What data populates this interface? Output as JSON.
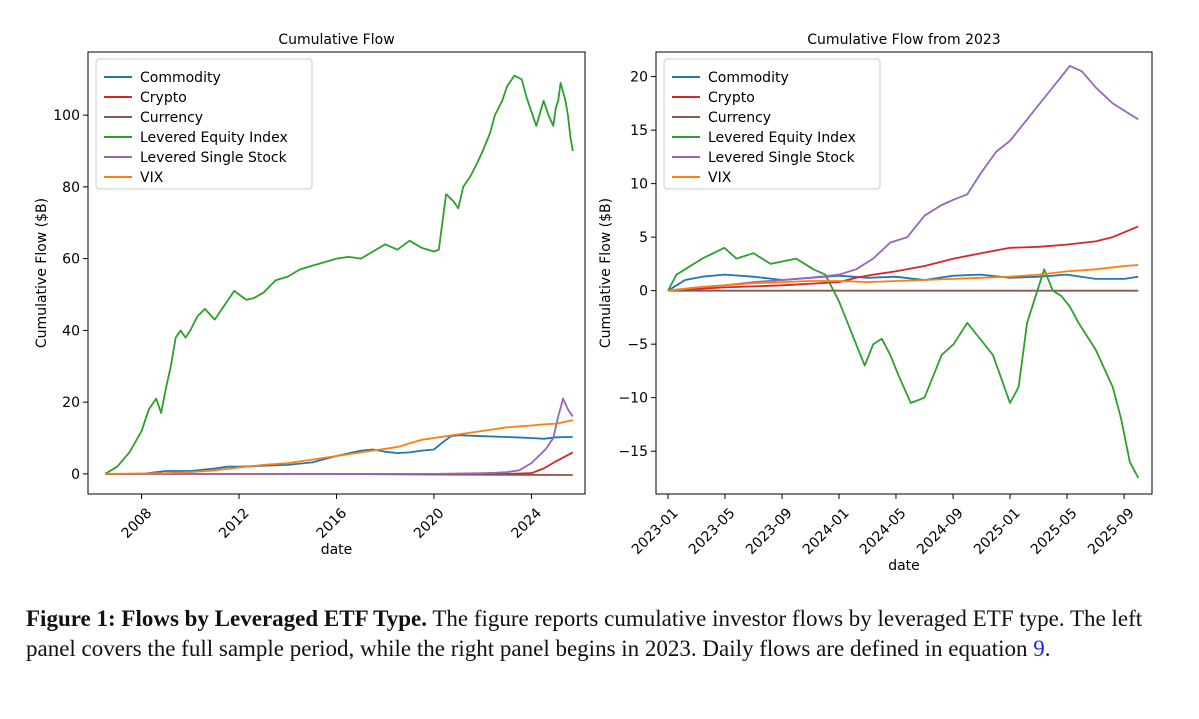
{
  "caption": {
    "title": "Figure 1: Flows by Leveraged ETF Type.",
    "text": " The figure reports cumulative investor flows by leveraged ETF type. The left panel covers the full sample period, while the right panel begins in 2023. Daily flows are defined in equation ",
    "ref": "9",
    "end": "."
  },
  "colors": {
    "Commodity": "#1f77b4",
    "Crypto": "#d62728",
    "Currency": "#8c564b",
    "Levered Equity Index": "#2ca02c",
    "Levered Single Stock": "#9467bd",
    "VIX": "#ff7f0e"
  },
  "chart_data": [
    {
      "type": "line",
      "title": "Cumulative Flow",
      "xlabel": "date",
      "ylabel": "Cumulative Flow ($B)",
      "xlim": [
        2005.8,
        2026.2
      ],
      "ylim": [
        -5.6,
        117.6
      ],
      "xticks": [
        2008,
        2012,
        2016,
        2020,
        2024
      ],
      "xtick_labels": [
        "2008",
        "2012",
        "2016",
        "2020",
        "2024"
      ],
      "yticks": [
        0,
        20,
        40,
        60,
        80,
        100
      ],
      "legend": "top-left",
      "grid": false,
      "series": [
        {
          "name": "Commodity",
          "x": [
            2006.5,
            2008.0,
            2009.0,
            2010.0,
            2011.0,
            2011.5,
            2012.0,
            2013.0,
            2014.0,
            2015.0,
            2016.0,
            2017.0,
            2017.5,
            2018.0,
            2018.5,
            2019.0,
            2019.5,
            2020.0,
            2020.3,
            2020.7,
            2021.0,
            2022.0,
            2023.0,
            2024.0,
            2024.5,
            2025.0,
            2025.7
          ],
          "y": [
            0,
            0,
            0.8,
            0.8,
            1.5,
            2.0,
            2.0,
            2.3,
            2.5,
            3.2,
            5.0,
            6.5,
            6.8,
            6.2,
            5.8,
            6.0,
            6.5,
            6.8,
            8.5,
            10.5,
            10.8,
            10.5,
            10.3,
            10.0,
            9.8,
            10.2,
            10.3
          ]
        },
        {
          "name": "Crypto",
          "x": [
            2006.5,
            2021.0,
            2022.0,
            2023.0,
            2024.0,
            2024.5,
            2025.0,
            2025.7
          ],
          "y": [
            0,
            0,
            0,
            0,
            0.2,
            1.5,
            3.5,
            6.0
          ]
        },
        {
          "name": "Currency",
          "x": [
            2006.5,
            2012.0,
            2016.0,
            2020.0,
            2025.7
          ],
          "y": [
            0,
            0,
            0,
            -0.2,
            -0.3
          ]
        },
        {
          "name": "Levered Equity Index",
          "x": [
            2006.5,
            2007.0,
            2007.5,
            2008.0,
            2008.3,
            2008.6,
            2008.8,
            2009.0,
            2009.2,
            2009.4,
            2009.6,
            2009.8,
            2010.0,
            2010.3,
            2010.6,
            2011.0,
            2011.3,
            2011.6,
            2011.8,
            2012.0,
            2012.3,
            2012.6,
            2013.0,
            2013.5,
            2014.0,
            2014.5,
            2015.0,
            2015.5,
            2016.0,
            2016.5,
            2017.0,
            2017.5,
            2018.0,
            2018.5,
            2019.0,
            2019.5,
            2020.0,
            2020.2,
            2020.5,
            2020.8,
            2021.0,
            2021.2,
            2021.5,
            2021.8,
            2022.0,
            2022.3,
            2022.5,
            2022.8,
            2023.0,
            2023.3,
            2023.6,
            2023.8,
            2024.0,
            2024.2,
            2024.5,
            2024.7,
            2024.9,
            2025.0,
            2025.1,
            2025.2,
            2025.4,
            2025.5,
            2025.6,
            2025.7
          ],
          "y": [
            0,
            2.0,
            6.0,
            12.0,
            18.0,
            21.0,
            17.0,
            24.0,
            30.0,
            38.0,
            40.0,
            38.0,
            40.0,
            44.0,
            46.0,
            43.0,
            46.0,
            49.0,
            51.0,
            50.0,
            48.5,
            49.0,
            50.5,
            54.0,
            55.0,
            57.0,
            58.0,
            59.0,
            60.0,
            60.5,
            60.0,
            62.0,
            64.0,
            62.5,
            65.0,
            63.0,
            62.0,
            62.5,
            78.0,
            76.0,
            74.0,
            80.0,
            83.0,
            87.0,
            90.0,
            95.0,
            100.0,
            104.0,
            108.0,
            111.0,
            110.0,
            105.0,
            101.0,
            97.0,
            104.0,
            100.0,
            97.0,
            102.0,
            104.0,
            109.0,
            104.0,
            100.0,
            94.0,
            90.0
          ]
        },
        {
          "name": "Levered Single Stock",
          "x": [
            2006.5,
            2012.0,
            2016.0,
            2020.0,
            2022.0,
            2022.5,
            2023.0,
            2023.5,
            2024.0,
            2024.3,
            2024.6,
            2024.9,
            2025.1,
            2025.3,
            2025.5,
            2025.7
          ],
          "y": [
            0,
            0,
            0,
            0,
            0.2,
            0.3,
            0.5,
            1.0,
            3.0,
            5.0,
            7.0,
            10.0,
            16.0,
            21.0,
            18.0,
            16.0
          ]
        },
        {
          "name": "VIX",
          "x": [
            2006.5,
            2009.0,
            2010.0,
            2011.0,
            2012.0,
            2013.0,
            2014.0,
            2015.0,
            2016.0,
            2017.0,
            2018.0,
            2018.5,
            2019.0,
            2019.5,
            2020.0,
            2020.5,
            2021.0,
            2022.0,
            2023.0,
            2024.0,
            2024.5,
            2025.0,
            2025.7
          ],
          "y": [
            0,
            0.2,
            0.5,
            1.0,
            1.8,
            2.5,
            3.0,
            4.0,
            5.0,
            6.0,
            7.0,
            7.5,
            8.5,
            9.5,
            10.0,
            10.5,
            11.0,
            12.0,
            13.0,
            13.5,
            13.8,
            14.0,
            15.0
          ]
        }
      ]
    },
    {
      "type": "line",
      "title": "Cumulative Flow from 2023",
      "xlabel": "date",
      "ylabel": "Cumulative Flow ($B)",
      "xlim": [
        2022.93,
        2025.83
      ],
      "ylim": [
        -19.0,
        22.3
      ],
      "xticks": [
        2023.0,
        2023.333,
        2023.667,
        2024.0,
        2024.333,
        2024.667,
        2025.0,
        2025.333,
        2025.667
      ],
      "xtick_labels": [
        "2023-01",
        "2023-05",
        "2023-09",
        "2024-01",
        "2024-05",
        "2024-09",
        "2025-01",
        "2025-05",
        "2025-09"
      ],
      "yticks": [
        -15,
        -10,
        -5,
        0,
        5,
        10,
        15,
        20
      ],
      "legend": "top-left",
      "grid": false,
      "series": [
        {
          "name": "Commodity",
          "x": [
            2023.0,
            2023.1,
            2023.2,
            2023.33,
            2023.5,
            2023.67,
            2023.83,
            2024.0,
            2024.17,
            2024.33,
            2024.5,
            2024.67,
            2024.83,
            2025.0,
            2025.17,
            2025.33,
            2025.5,
            2025.67,
            2025.75
          ],
          "y": [
            0,
            1.0,
            1.3,
            1.5,
            1.3,
            1.0,
            1.2,
            1.4,
            1.2,
            1.3,
            1.0,
            1.4,
            1.5,
            1.2,
            1.3,
            1.5,
            1.1,
            1.1,
            1.3
          ]
        },
        {
          "name": "Crypto",
          "x": [
            2023.0,
            2023.33,
            2023.67,
            2024.0,
            2024.1,
            2024.2,
            2024.33,
            2024.5,
            2024.67,
            2024.83,
            2025.0,
            2025.17,
            2025.33,
            2025.5,
            2025.6,
            2025.75
          ],
          "y": [
            0,
            0.3,
            0.5,
            0.8,
            1.2,
            1.5,
            1.8,
            2.3,
            3.0,
            3.5,
            4.0,
            4.1,
            4.3,
            4.6,
            5.0,
            6.0
          ]
        },
        {
          "name": "Currency",
          "x": [
            2023.0,
            2024.0,
            2025.0,
            2025.75
          ],
          "y": [
            0,
            0,
            0,
            0
          ]
        },
        {
          "name": "Levered Equity Index",
          "x": [
            2023.0,
            2023.05,
            2023.1,
            2023.2,
            2023.33,
            2023.4,
            2023.5,
            2023.6,
            2023.75,
            2023.85,
            2023.92,
            2024.0,
            2024.05,
            2024.1,
            2024.15,
            2024.2,
            2024.25,
            2024.3,
            2024.35,
            2024.42,
            2024.5,
            2024.55,
            2024.6,
            2024.67,
            2024.75,
            2024.8,
            2024.9,
            2025.0,
            2025.05,
            2025.1,
            2025.2,
            2025.25,
            2025.3,
            2025.35,
            2025.4,
            2025.5,
            2025.6,
            2025.65,
            2025.7,
            2025.75
          ],
          "y": [
            0,
            1.5,
            2.0,
            3.0,
            4.0,
            3.0,
            3.5,
            2.5,
            3.0,
            2.0,
            1.5,
            -1.0,
            -3.0,
            -5.0,
            -7.0,
            -5.0,
            -4.5,
            -6.0,
            -8.0,
            -10.5,
            -10.0,
            -8.0,
            -6.0,
            -5.0,
            -3.0,
            -4.0,
            -6.0,
            -10.5,
            -9.0,
            -3.0,
            2.0,
            0.0,
            -0.5,
            -1.5,
            -3.0,
            -5.5,
            -9.0,
            -12.0,
            -16.0,
            -17.5
          ]
        },
        {
          "name": "Levered Single Stock",
          "x": [
            2023.0,
            2023.17,
            2023.33,
            2023.5,
            2023.67,
            2023.83,
            2024.0,
            2024.1,
            2024.2,
            2024.3,
            2024.4,
            2024.5,
            2024.6,
            2024.67,
            2024.75,
            2024.83,
            2024.92,
            2025.0,
            2025.1,
            2025.2,
            2025.3,
            2025.35,
            2025.42,
            2025.5,
            2025.6,
            2025.7,
            2025.75
          ],
          "y": [
            0,
            0.3,
            0.5,
            0.8,
            1.0,
            1.2,
            1.5,
            2.0,
            3.0,
            4.5,
            5.0,
            7.0,
            8.0,
            8.5,
            9.0,
            11.0,
            13.0,
            14.0,
            16.0,
            18.0,
            20.0,
            21.0,
            20.5,
            19.0,
            17.5,
            16.5,
            16.0
          ]
        },
        {
          "name": "VIX",
          "x": [
            2023.0,
            2023.17,
            2023.33,
            2023.5,
            2023.67,
            2023.83,
            2024.0,
            2024.17,
            2024.33,
            2024.5,
            2024.67,
            2024.83,
            2025.0,
            2025.17,
            2025.33,
            2025.5,
            2025.67,
            2025.75
          ],
          "y": [
            0,
            0.3,
            0.5,
            0.7,
            0.8,
            0.9,
            0.9,
            0.8,
            0.9,
            1.0,
            1.1,
            1.2,
            1.3,
            1.5,
            1.8,
            2.0,
            2.3,
            2.4
          ]
        }
      ]
    }
  ]
}
